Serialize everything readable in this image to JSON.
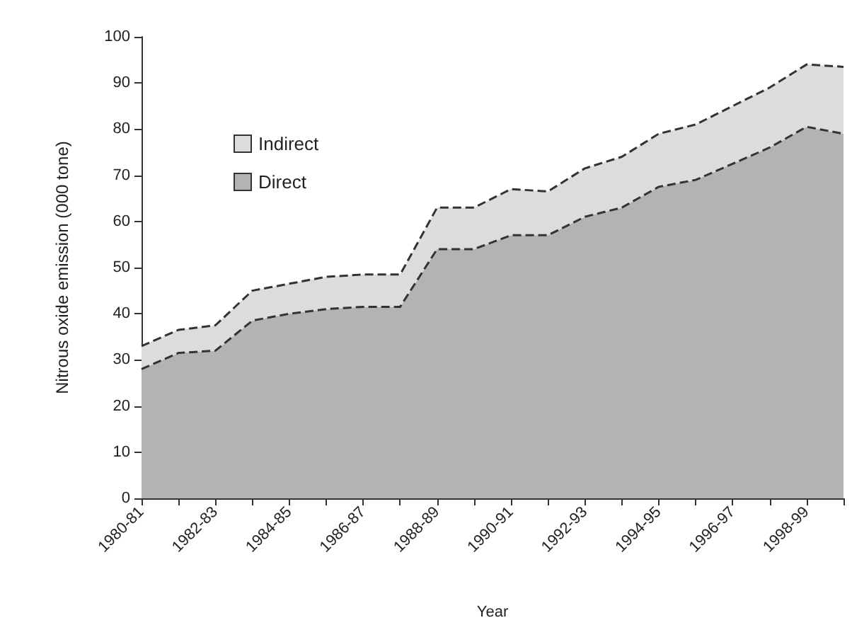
{
  "chart_data": {
    "type": "area",
    "stacked": true,
    "xlabel": "Year",
    "ylabel": "Nitrous oxide emission (000 tone)",
    "categories": [
      "1980-81",
      null,
      "1982-83",
      null,
      "1984-85",
      null,
      "1986-87",
      null,
      "1988-89",
      null,
      "1990-91",
      null,
      "1992-93",
      null,
      "1994-95",
      null,
      "1996-97",
      null,
      "1998-99",
      null
    ],
    "series": [
      {
        "name": "Direct",
        "color": "#b3b3b3",
        "values": [
          28,
          31.5,
          32,
          38.5,
          40,
          41,
          41.5,
          41.5,
          54,
          54,
          57,
          57,
          61,
          63,
          67.5,
          69,
          72.5,
          76,
          80.5,
          79
        ]
      },
      {
        "name": "Indirect",
        "color": "#dcdcdc",
        "values": [
          5,
          5,
          5.5,
          6.5,
          6.5,
          7,
          7,
          7,
          9,
          9,
          10,
          9.5,
          10.5,
          11,
          11.5,
          12,
          12.5,
          13,
          13.5,
          14.5
        ]
      }
    ],
    "ylim": [
      0,
      100
    ],
    "yticks": [
      0,
      10,
      20,
      30,
      40,
      50,
      60,
      70,
      80,
      90,
      100
    ],
    "grid": false,
    "legend": "top left",
    "line_style": "dashed"
  }
}
